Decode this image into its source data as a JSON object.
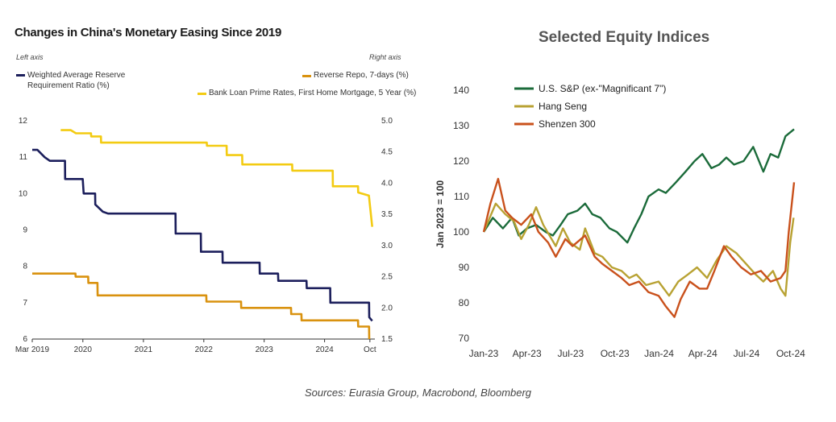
{
  "sources": "Sources: Eurasia Group, Macrobond, Bloomberg",
  "chart_data": [
    {
      "type": "line",
      "title": "Changes in China's Monetary Easing Since 2019",
      "left_axis_note": "Left axis",
      "right_axis_note": "Right axis",
      "left_ylim": [
        6,
        12
      ],
      "right_ylim": [
        1.5,
        5.0
      ],
      "left_yticks": [
        "6",
        "7",
        "8",
        "9",
        "10",
        "11",
        "12"
      ],
      "right_yticks": [
        "1.5",
        "2.0",
        "2.5",
        "3.0",
        "3.5",
        "4.0",
        "4.5",
        "5.0"
      ],
      "xticks": [
        "Mar 2019",
        "2020",
        "2021",
        "2022",
        "2023",
        "2024",
        "Oct"
      ],
      "xtick_dates": [
        "2019-03-01",
        "2020-01-01",
        "2021-01-01",
        "2022-01-01",
        "2023-01-01",
        "2024-01-01",
        "2024-10-01"
      ],
      "x_range": [
        "2019-03-01",
        "2024-10-31"
      ],
      "series": [
        {
          "name": "Weighted Average Reserve Requirement Ratio (%)",
          "axis": "left",
          "color": "#1c1f5c",
          "points": [
            [
              "2019-03-01",
              11.2
            ],
            [
              "2019-04-01",
              11.2
            ],
            [
              "2019-05-15",
              11.0
            ],
            [
              "2019-06-15",
              10.9
            ],
            [
              "2019-09-15",
              10.9
            ],
            [
              "2019-09-16",
              10.4
            ],
            [
              "2019-12-31",
              10.4
            ],
            [
              "2020-01-06",
              10.0
            ],
            [
              "2020-03-15",
              10.0
            ],
            [
              "2020-03-16",
              9.7
            ],
            [
              "2020-05-01",
              9.5
            ],
            [
              "2020-06-01",
              9.45
            ],
            [
              "2021-07-14",
              9.45
            ],
            [
              "2021-07-15",
              8.9
            ],
            [
              "2021-12-14",
              8.9
            ],
            [
              "2021-12-15",
              8.4
            ],
            [
              "2022-04-24",
              8.4
            ],
            [
              "2022-04-25",
              8.1
            ],
            [
              "2022-12-04",
              8.1
            ],
            [
              "2022-12-05",
              7.8
            ],
            [
              "2023-03-26",
              7.8
            ],
            [
              "2023-03-27",
              7.6
            ],
            [
              "2023-09-14",
              7.6
            ],
            [
              "2023-09-15",
              7.4
            ],
            [
              "2024-02-04",
              7.4
            ],
            [
              "2024-02-05",
              7.0
            ],
            [
              "2024-09-26",
              7.0
            ],
            [
              "2024-09-27",
              6.6
            ],
            [
              "2024-10-15",
              6.5
            ]
          ]
        },
        {
          "name": "Reverse Repo, 7-days (%)",
          "axis": "right",
          "color": "#d9920f",
          "points": [
            [
              "2019-03-01",
              2.55
            ],
            [
              "2019-11-17",
              2.55
            ],
            [
              "2019-11-18",
              2.5
            ],
            [
              "2020-02-02",
              2.5
            ],
            [
              "2020-02-03",
              2.4
            ],
            [
              "2020-03-29",
              2.4
            ],
            [
              "2020-03-30",
              2.2
            ],
            [
              "2022-01-16",
              2.2
            ],
            [
              "2022-01-17",
              2.1
            ],
            [
              "2022-08-14",
              2.1
            ],
            [
              "2022-08-15",
              2.0
            ],
            [
              "2023-06-12",
              2.0
            ],
            [
              "2023-06-13",
              1.9
            ],
            [
              "2023-08-14",
              1.9
            ],
            [
              "2023-08-15",
              1.8
            ],
            [
              "2024-07-21",
              1.8
            ],
            [
              "2024-07-22",
              1.7
            ],
            [
              "2024-09-26",
              1.7
            ],
            [
              "2024-09-27",
              1.5
            ]
          ]
        },
        {
          "name": "Bank Loan Prime Rates, First Home Mortgage, 5 Year (%)",
          "axis": "right",
          "color": "#f3cb12",
          "points": [
            [
              "2019-08-20",
              4.85
            ],
            [
              "2019-10-20",
              4.85
            ],
            [
              "2019-11-20",
              4.8
            ],
            [
              "2020-02-19",
              4.8
            ],
            [
              "2020-02-20",
              4.75
            ],
            [
              "2020-04-19",
              4.75
            ],
            [
              "2020-04-20",
              4.65
            ],
            [
              "2022-01-19",
              4.65
            ],
            [
              "2022-01-20",
              4.6
            ],
            [
              "2022-05-19",
              4.6
            ],
            [
              "2022-05-20",
              4.45
            ],
            [
              "2022-08-21",
              4.45
            ],
            [
              "2022-08-22",
              4.3
            ],
            [
              "2023-06-19",
              4.3
            ],
            [
              "2023-06-20",
              4.2
            ],
            [
              "2024-02-19",
              4.2
            ],
            [
              "2024-02-20",
              3.95
            ],
            [
              "2024-07-21",
              3.95
            ],
            [
              "2024-07-22",
              3.85
            ],
            [
              "2024-09-25",
              3.8
            ],
            [
              "2024-10-15",
              3.3
            ]
          ]
        }
      ]
    },
    {
      "type": "line",
      "title": "Selected Equity Indices",
      "ylabel": "Jan 2023 = 100",
      "ylim": [
        70,
        140
      ],
      "yticks": [
        "70",
        "80",
        "90",
        "100",
        "110",
        "120",
        "130",
        "140"
      ],
      "xticks": [
        "Jan-23",
        "Apr-23",
        "Jul-23",
        "Oct-23",
        "Jan-24",
        "Apr-24",
        "Jul-24",
        "Oct-24"
      ],
      "xtick_dates": [
        "2023-01-01",
        "2023-04-01",
        "2023-07-01",
        "2023-10-01",
        "2024-01-01",
        "2024-04-01",
        "2024-07-01",
        "2024-10-01"
      ],
      "x_range": [
        "2023-01-01",
        "2024-10-08"
      ],
      "series": [
        {
          "name": "U.S. S&P (ex-\"Magnificant 7\")",
          "color": "#1b6b3a",
          "points": [
            [
              "2023-01-01",
              100
            ],
            [
              "2023-01-20",
              104
            ],
            [
              "2023-02-10",
              101
            ],
            [
              "2023-03-01",
              104
            ],
            [
              "2023-03-15",
              99
            ],
            [
              "2023-04-01",
              101
            ],
            [
              "2023-04-20",
              102
            ],
            [
              "2023-05-10",
              100
            ],
            [
              "2023-05-25",
              99
            ],
            [
              "2023-06-10",
              102
            ],
            [
              "2023-06-25",
              105
            ],
            [
              "2023-07-15",
              106
            ],
            [
              "2023-07-31",
              108
            ],
            [
              "2023-08-15",
              105
            ],
            [
              "2023-09-01",
              104
            ],
            [
              "2023-09-20",
              101
            ],
            [
              "2023-10-05",
              100
            ],
            [
              "2023-10-27",
              97
            ],
            [
              "2023-11-10",
              101
            ],
            [
              "2023-11-25",
              105
            ],
            [
              "2023-12-10",
              110
            ],
            [
              "2023-12-31",
              112
            ],
            [
              "2024-01-15",
              111
            ],
            [
              "2024-02-05",
              114
            ],
            [
              "2024-02-25",
              117
            ],
            [
              "2024-03-15",
              120
            ],
            [
              "2024-03-31",
              122
            ],
            [
              "2024-04-19",
              118
            ],
            [
              "2024-05-05",
              119
            ],
            [
              "2024-05-20",
              121
            ],
            [
              "2024-06-05",
              119
            ],
            [
              "2024-06-25",
              120
            ],
            [
              "2024-07-15",
              124
            ],
            [
              "2024-08-05",
              117
            ],
            [
              "2024-08-20",
              122
            ],
            [
              "2024-09-05",
              121
            ],
            [
              "2024-09-20",
              127
            ],
            [
              "2024-10-08",
              129
            ]
          ]
        },
        {
          "name": "Hang Seng",
          "color": "#b8a233",
          "points": [
            [
              "2023-01-01",
              100
            ],
            [
              "2023-01-26",
              108
            ],
            [
              "2023-02-15",
              105
            ],
            [
              "2023-03-05",
              103
            ],
            [
              "2023-03-20",
              98
            ],
            [
              "2023-04-05",
              102
            ],
            [
              "2023-04-20",
              107
            ],
            [
              "2023-05-05",
              102
            ],
            [
              "2023-05-31",
              96
            ],
            [
              "2023-06-15",
              101
            ],
            [
              "2023-06-30",
              97
            ],
            [
              "2023-07-20",
              95
            ],
            [
              "2023-07-31",
              101
            ],
            [
              "2023-08-20",
              94
            ],
            [
              "2023-09-05",
              93
            ],
            [
              "2023-09-25",
              90
            ],
            [
              "2023-10-15",
              89
            ],
            [
              "2023-10-31",
              87
            ],
            [
              "2023-11-15",
              88
            ],
            [
              "2023-12-05",
              85
            ],
            [
              "2023-12-31",
              86
            ],
            [
              "2024-01-22",
              82
            ],
            [
              "2024-02-10",
              86
            ],
            [
              "2024-03-01",
              88
            ],
            [
              "2024-03-20",
              90
            ],
            [
              "2024-04-10",
              87
            ],
            [
              "2024-04-30",
              92
            ],
            [
              "2024-05-20",
              96
            ],
            [
              "2024-06-10",
              94
            ],
            [
              "2024-06-30",
              91
            ],
            [
              "2024-07-20",
              88
            ],
            [
              "2024-08-05",
              86
            ],
            [
              "2024-08-25",
              89
            ],
            [
              "2024-09-10",
              84
            ],
            [
              "2024-09-20",
              82
            ],
            [
              "2024-09-30",
              97
            ],
            [
              "2024-10-07",
              104
            ]
          ]
        },
        {
          "name": "Shenzen 300",
          "color": "#c9511c",
          "points": [
            [
              "2023-01-01",
              100
            ],
            [
              "2023-01-15",
              108
            ],
            [
              "2023-01-31",
              115
            ],
            [
              "2023-02-15",
              106
            ],
            [
              "2023-03-01",
              104
            ],
            [
              "2023-03-20",
              102
            ],
            [
              "2023-04-10",
              105
            ],
            [
              "2023-04-25",
              100
            ],
            [
              "2023-05-15",
              97
            ],
            [
              "2023-05-31",
              93
            ],
            [
              "2023-06-20",
              98
            ],
            [
              "2023-07-05",
              96
            ],
            [
              "2023-07-31",
              99
            ],
            [
              "2023-08-20",
              93
            ],
            [
              "2023-09-05",
              91
            ],
            [
              "2023-09-25",
              89
            ],
            [
              "2023-10-15",
              87
            ],
            [
              "2023-10-31",
              85
            ],
            [
              "2023-11-20",
              86
            ],
            [
              "2023-12-10",
              83
            ],
            [
              "2023-12-31",
              82
            ],
            [
              "2024-01-15",
              79
            ],
            [
              "2024-02-02",
              76
            ],
            [
              "2024-02-15",
              81
            ],
            [
              "2024-03-05",
              86
            ],
            [
              "2024-03-25",
              84
            ],
            [
              "2024-04-10",
              84
            ],
            [
              "2024-04-25",
              89
            ],
            [
              "2024-05-15",
              96
            ],
            [
              "2024-05-31",
              93
            ],
            [
              "2024-06-20",
              90
            ],
            [
              "2024-07-10",
              88
            ],
            [
              "2024-07-31",
              89
            ],
            [
              "2024-08-20",
              86
            ],
            [
              "2024-09-10",
              87
            ],
            [
              "2024-09-20",
              89
            ],
            [
              "2024-09-27",
              100
            ],
            [
              "2024-10-08",
              114
            ]
          ]
        }
      ]
    }
  ]
}
